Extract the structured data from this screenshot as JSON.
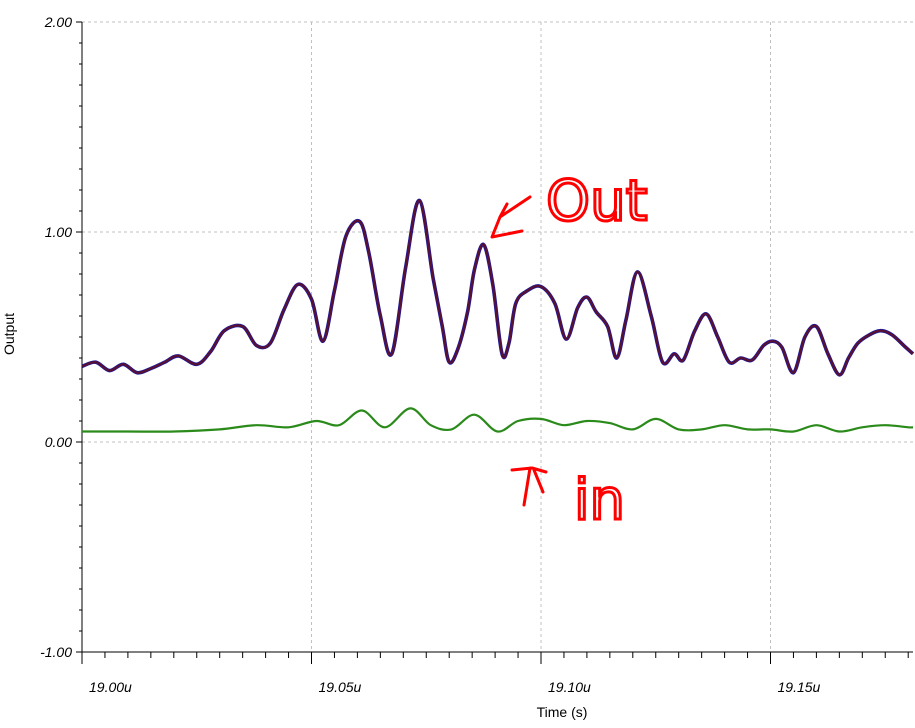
{
  "chart_data": {
    "type": "line",
    "title": "",
    "xlabel": "Time (s)",
    "ylabel": "Output",
    "xlim": [
      19.0,
      19.18
    ],
    "ylim": [
      -1.0,
      2.0
    ],
    "x_ticks": [
      19.0,
      19.05,
      19.1,
      19.15
    ],
    "x_tick_labels": [
      "19.00u",
      "19.05u",
      "19.10u",
      "19.15u"
    ],
    "y_ticks": [
      -1.0,
      0.0,
      1.0,
      2.0
    ],
    "y_tick_labels": [
      "-1.00",
      "0.00",
      "1.00",
      "2.00"
    ],
    "grid": true,
    "colors": {
      "out": "#5a1030",
      "in": "#2a8a1a",
      "annotation": "#ff0000",
      "grid": "#c0c0c0"
    },
    "series": [
      {
        "key": "out",
        "x": [
          19.0,
          19.003,
          19.006,
          19.009,
          19.012,
          19.015,
          19.018,
          19.021,
          19.025,
          19.028,
          19.031,
          19.035,
          19.038,
          19.041,
          19.044,
          19.047,
          19.05,
          19.0525,
          19.055,
          19.0575,
          19.0605,
          19.0625,
          19.065,
          19.0675,
          19.0705,
          19.0735,
          19.0765,
          19.0785,
          19.08,
          19.082,
          19.084,
          19.0855,
          19.0875,
          19.0895,
          19.0915,
          19.093,
          19.0945,
          19.097,
          19.1,
          19.103,
          19.1055,
          19.108,
          19.11,
          19.112,
          19.1145,
          19.1165,
          19.1185,
          19.121,
          19.124,
          19.1265,
          19.129,
          19.131,
          19.1335,
          19.136,
          19.1385,
          19.141,
          19.1435,
          19.146,
          19.1485,
          19.1505,
          19.1525,
          19.155,
          19.1575,
          19.16,
          19.1625,
          19.165,
          19.167,
          19.169,
          19.1715,
          19.174,
          19.1765,
          19.1795,
          19.1815
        ],
        "y": [
          0.36,
          0.38,
          0.34,
          0.37,
          0.33,
          0.35,
          0.38,
          0.41,
          0.37,
          0.43,
          0.53,
          0.55,
          0.46,
          0.47,
          0.63,
          0.75,
          0.68,
          0.48,
          0.72,
          0.98,
          1.05,
          0.9,
          0.6,
          0.42,
          0.83,
          1.15,
          0.78,
          0.55,
          0.38,
          0.45,
          0.62,
          0.82,
          0.94,
          0.75,
          0.42,
          0.47,
          0.66,
          0.72,
          0.74,
          0.66,
          0.49,
          0.64,
          0.69,
          0.62,
          0.55,
          0.4,
          0.58,
          0.81,
          0.6,
          0.38,
          0.42,
          0.39,
          0.53,
          0.61,
          0.5,
          0.38,
          0.4,
          0.39,
          0.46,
          0.48,
          0.45,
          0.33,
          0.5,
          0.55,
          0.42,
          0.32,
          0.4,
          0.47,
          0.51,
          0.53,
          0.51,
          0.45,
          0.42
        ]
      },
      {
        "key": "in",
        "x": [
          19.0,
          19.01,
          19.02,
          19.03,
          19.038,
          19.045,
          19.051,
          19.056,
          19.061,
          19.066,
          19.0715,
          19.076,
          19.0805,
          19.0855,
          19.0905,
          19.095,
          19.1,
          19.105,
          19.11,
          19.115,
          19.12,
          19.125,
          19.13,
          19.135,
          19.14,
          19.145,
          19.15,
          19.155,
          19.16,
          19.165,
          19.17,
          19.175,
          19.18,
          19.1815
        ],
        "y": [
          0.05,
          0.05,
          0.05,
          0.06,
          0.08,
          0.07,
          0.1,
          0.08,
          0.15,
          0.07,
          0.16,
          0.08,
          0.06,
          0.13,
          0.05,
          0.1,
          0.11,
          0.08,
          0.1,
          0.09,
          0.06,
          0.11,
          0.06,
          0.06,
          0.08,
          0.06,
          0.06,
          0.05,
          0.08,
          0.05,
          0.07,
          0.08,
          0.07,
          0.07
        ]
      }
    ],
    "annotations": [
      {
        "text": "Out",
        "series": "out"
      },
      {
        "text": "in",
        "series": "in"
      }
    ]
  }
}
